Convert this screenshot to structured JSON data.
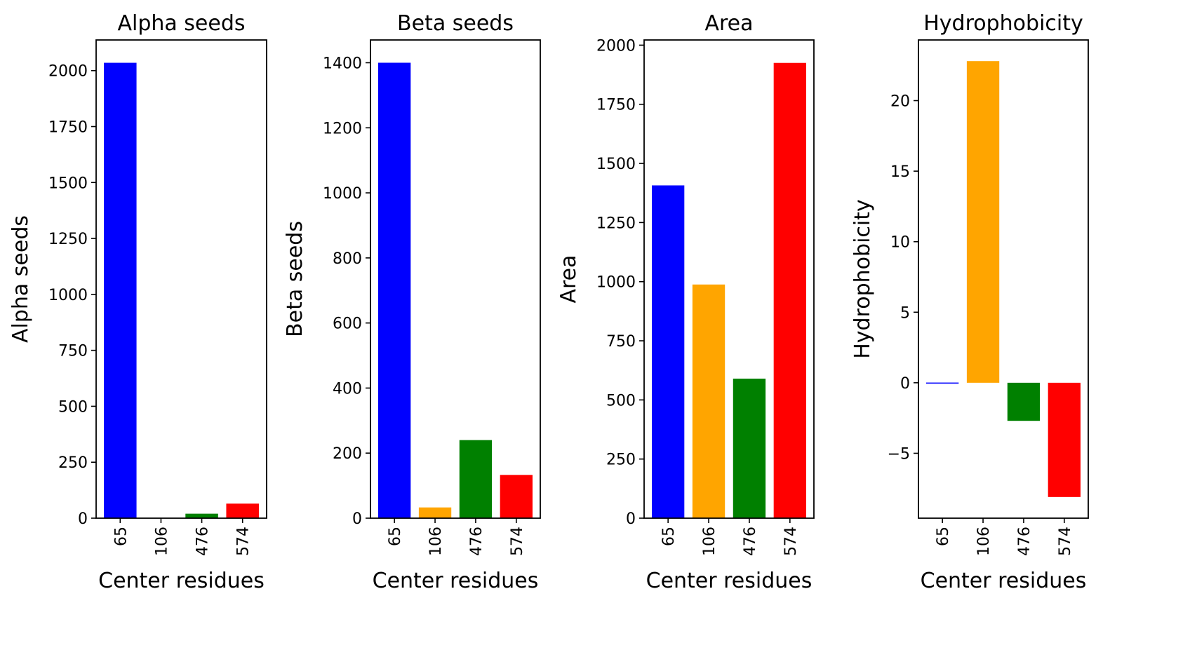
{
  "chart_data": [
    {
      "type": "bar",
      "title": "Alpha seeds",
      "xlabel": "Center residues",
      "ylabel": "Alpha seeds",
      "categories": [
        "65",
        "106",
        "476",
        "574"
      ],
      "values": [
        2035,
        0,
        20,
        65
      ],
      "colors": [
        "#0000ff",
        "#ffa500",
        "#008000",
        "#ff0000"
      ],
      "ylim": [
        0,
        2137
      ],
      "yticks": [
        0,
        250,
        500,
        750,
        1000,
        1250,
        1500,
        1750,
        2000
      ],
      "ytick_labels": [
        "0",
        "250",
        "500",
        "750",
        "1000",
        "1250",
        "1500",
        "1750",
        "2000"
      ],
      "grid": false,
      "legend": "none"
    },
    {
      "type": "bar",
      "title": "Beta seeds",
      "xlabel": "Center residues",
      "ylabel": "Beta seeds",
      "categories": [
        "65",
        "106",
        "476",
        "574"
      ],
      "values": [
        1400,
        33,
        240,
        133
      ],
      "colors": [
        "#0000ff",
        "#ffa500",
        "#008000",
        "#ff0000"
      ],
      "ylim": [
        0,
        1470
      ],
      "yticks": [
        0,
        200,
        400,
        600,
        800,
        1000,
        1200,
        1400
      ],
      "ytick_labels": [
        "0",
        "200",
        "400",
        "600",
        "800",
        "1000",
        "1200",
        "1400"
      ],
      "grid": false,
      "legend": "none"
    },
    {
      "type": "bar",
      "title": "Area",
      "xlabel": "Center residues",
      "ylabel": "Area",
      "categories": [
        "65",
        "106",
        "476",
        "574"
      ],
      "values": [
        1407,
        988,
        590,
        1925
      ],
      "colors": [
        "#0000ff",
        "#ffa500",
        "#008000",
        "#ff0000"
      ],
      "ylim": [
        0,
        2022
      ],
      "yticks": [
        0,
        250,
        500,
        750,
        1000,
        1250,
        1500,
        1750,
        2000
      ],
      "ytick_labels": [
        "0",
        "250",
        "500",
        "750",
        "1000",
        "1250",
        "1500",
        "1750",
        "2000"
      ],
      "grid": false,
      "legend": "none"
    },
    {
      "type": "bar",
      "title": "Hydrophobicity",
      "xlabel": "Center residues",
      "ylabel": "Hydrophobicity",
      "categories": [
        "65",
        "106",
        "476",
        "574"
      ],
      "values": [
        -0.05,
        22.8,
        -2.7,
        -8.1
      ],
      "colors": [
        "#0000ff",
        "#ffa500",
        "#008000",
        "#ff0000"
      ],
      "ylim": [
        -9.6,
        24.3
      ],
      "yticks": [
        -5,
        0,
        5,
        10,
        15,
        20
      ],
      "ytick_labels": [
        "−5",
        "0",
        "5",
        "10",
        "15",
        "20"
      ],
      "grid": false,
      "legend": "none"
    }
  ]
}
